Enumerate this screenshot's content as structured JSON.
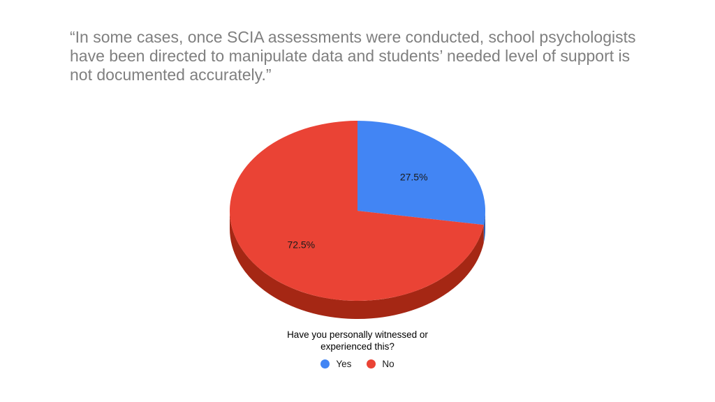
{
  "slide": {
    "title": "“In some cases, once SCIA assessments were conducted, school psychologists have been directed to manipulate data and students’ needed level of support is not documented accurately.”"
  },
  "chart_data": {
    "type": "pie",
    "title": "Have you personally witnessed or experienced this?",
    "style": "3d",
    "categories": [
      "Yes",
      "No"
    ],
    "values": [
      27.5,
      72.5
    ],
    "labels": [
      "27.5%",
      "72.5%"
    ],
    "colors": [
      "#4285f4",
      "#ea4335"
    ],
    "side_colors": [
      "#2f5fb3",
      "#a52714"
    ],
    "legend": {
      "position": "bottom",
      "entries": [
        {
          "name": "Yes",
          "color": "#4285f4"
        },
        {
          "name": "No",
          "color": "#ea4335"
        }
      ]
    }
  }
}
